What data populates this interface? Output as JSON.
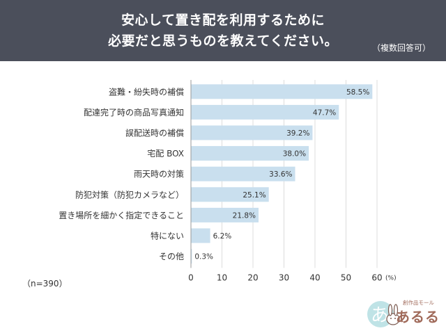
{
  "header": {
    "title_line1": "安心して置き配を利用するために",
    "title_line2": "必要だと思うものを教えてください。",
    "note": "（複数回答可）"
  },
  "sample_size": "（n=390）",
  "logo": {
    "small_text": "創作品モール",
    "main_text": "あるる"
  },
  "colors": {
    "header_bg": "#4b4f5b",
    "bar": "#c9dfee",
    "grid": "#dcdcdc"
  },
  "chart_data": {
    "type": "bar",
    "orientation": "horizontal",
    "categories": [
      "盗難・紛失時の補償",
      "配達完了時の商品写真通知",
      "誤配送時の補償",
      "宅配 BOX",
      "雨天時の対策",
      "防犯対策（防犯カメラなど）",
      "置き場所を細かく指定できること",
      "特にない",
      "その他"
    ],
    "values": [
      58.5,
      47.7,
      39.2,
      38.0,
      33.6,
      25.1,
      21.8,
      6.2,
      0.3
    ],
    "value_labels": [
      "58.5%",
      "47.7%",
      "39.2%",
      "38.0%",
      "33.6%",
      "25.1%",
      "21.8%",
      "6.2%",
      "0.3%"
    ],
    "xlim": [
      0,
      60
    ],
    "xticks": [
      "0",
      "10",
      "20",
      "30",
      "40",
      "50",
      "60"
    ],
    "xunit": "(%)",
    "grid": true
  }
}
